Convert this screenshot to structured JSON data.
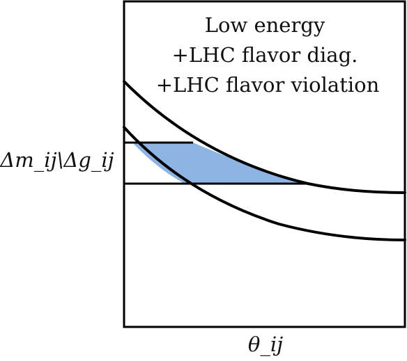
{
  "diagram": {
    "title_lines": [
      "Low energy",
      "+LHC flavor diag.",
      "+LHC flavor violation"
    ],
    "y_axis_label": "Δm_ij\\Δg_ij",
    "x_axis_label": "θ_ij",
    "colors": {
      "frame": "#000000",
      "curve": "#000000",
      "allowed_region_fill": "#8eb4e3",
      "text": "#111111"
    },
    "elements": {
      "upper_curve": "falling curve (upper)",
      "lower_curve": "falling curve (lower)",
      "upper_bound_line": "horizontal upper bound",
      "lower_bound_line": "horizontal lower bound",
      "allowed_region": "shaded allowed region between curves and bounds"
    }
  }
}
